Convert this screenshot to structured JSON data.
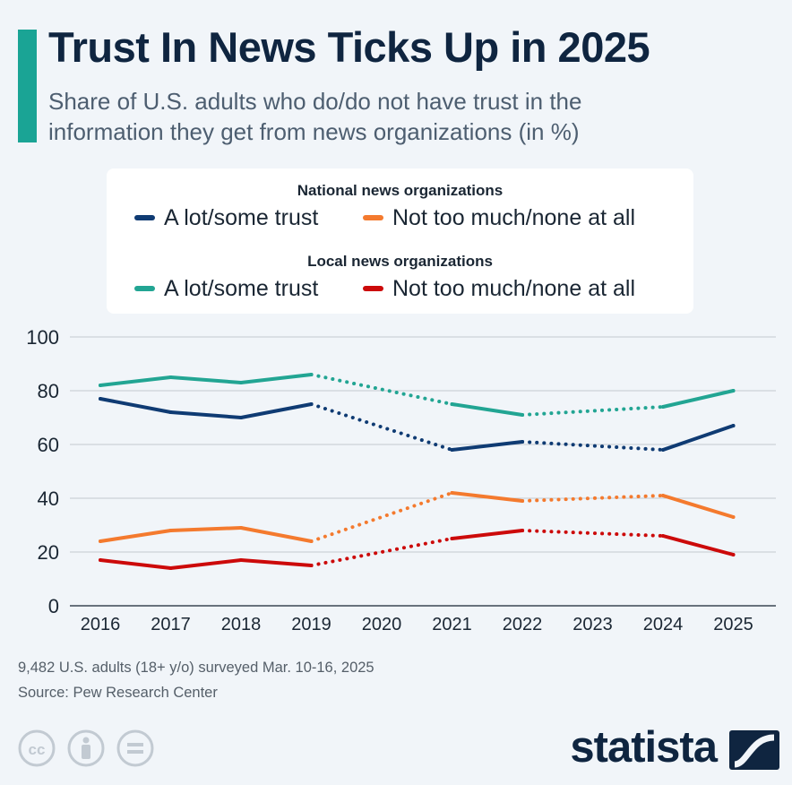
{
  "title": "Trust In News Ticks Up in 2025",
  "subtitle_line1": "Share of U.S. adults who do/do not have trust in the",
  "subtitle_line2": "information they get from news organizations (in %)",
  "legend": {
    "national_heading": "National news organizations",
    "local_heading": "Local news organizations",
    "national_trust": "A lot/some trust",
    "national_distrust": "Not too much/none at all",
    "local_trust": "A lot/some trust",
    "local_distrust": "Not too much/none at all"
  },
  "footer": {
    "survey_note": "9,482 U.S. adults (18+ y/o) surveyed Mar. 10-16, 2025",
    "source": "Source: Pew Research Center"
  },
  "brand": {
    "name": "statista"
  },
  "icons": [
    "creative-commons-icon",
    "attribution-icon",
    "no-derivatives-icon",
    "statista-logo-icon"
  ],
  "colors": {
    "accent": "#1aa495",
    "national_trust": "#0f3b73",
    "national_distrust": "#f47a2e",
    "local_trust": "#22a593",
    "local_distrust": "#cc0a0a"
  },
  "chart_data": {
    "type": "line",
    "x": [
      "2016",
      "2017",
      "2018",
      "2019",
      "2020",
      "2021",
      "2022",
      "2023",
      "2024",
      "2025"
    ],
    "ylim": [
      0,
      100
    ],
    "yticks": [
      0,
      20,
      40,
      60,
      80,
      100
    ],
    "grid": true,
    "legend_position": "top",
    "note": "Dotted segments span years without survey data (2020, 2023).",
    "series": [
      {
        "name": "National news organizations: A lot/some trust",
        "color": "#0f3b73",
        "values": [
          77,
          72,
          70,
          75,
          null,
          58,
          61,
          null,
          58,
          67
        ]
      },
      {
        "name": "National news organizations: Not too much/none at all",
        "color": "#f47a2e",
        "values": [
          24,
          28,
          29,
          24,
          null,
          42,
          39,
          null,
          41,
          33
        ]
      },
      {
        "name": "Local news organizations: A lot/some trust",
        "color": "#22a593",
        "values": [
          82,
          85,
          83,
          86,
          null,
          75,
          71,
          null,
          74,
          80
        ]
      },
      {
        "name": "Local news organizations: Not too much/none at all",
        "color": "#cc0a0a",
        "values": [
          17,
          14,
          17,
          15,
          null,
          25,
          28,
          null,
          26,
          19
        ]
      }
    ]
  }
}
